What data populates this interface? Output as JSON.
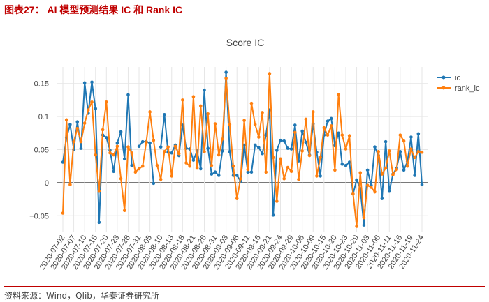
{
  "header": {
    "title": "图表27：  AI 模型预测结果 IC 和 Rank IC"
  },
  "footer": {
    "source": "资料来源：Wind，Qlib，华泰证券研究所"
  },
  "colors": {
    "ic": "#1f77b4",
    "rank_ic": "#ff7f0e",
    "grid": "#e6e6e6",
    "zero": "#666666"
  },
  "chart_data": {
    "type": "line",
    "title": "Score IC",
    "xlabel": "",
    "ylabel": "",
    "ylim": [
      -0.075,
      0.175
    ],
    "yticks": [
      -0.05,
      0,
      0.05,
      0.1,
      0.15
    ],
    "ytick_labels": [
      "−0.05",
      "0",
      "0.05",
      "0.1",
      "0.15"
    ],
    "legend_position": "top-right",
    "x_tick_labels": [
      "2020-07-02",
      "2020-07-07",
      "2020-07-10",
      "2020-07-15",
      "2020-07-20",
      "2020-07-23",
      "2020-07-28",
      "2020-07-31",
      "2020-08-05",
      "2020-08-10",
      "2020-08-13",
      "2020-08-18",
      "2020-08-21",
      "2020-08-26",
      "2020-08-31",
      "2020-09-03",
      "2020-09-08",
      "2020-09-11",
      "2020-09-16",
      "2020-09-21",
      "2020-09-24",
      "2020-09-29",
      "2020-10-06",
      "2020-10-09",
      "2020-10-15",
      "2020-10-20",
      "2020-10-23",
      "2020-10-29",
      "2020-11-03",
      "2020-11-06",
      "2020-11-11",
      "2020-11-16",
      "2020-11-19",
      "2020-11-24"
    ],
    "series": [
      {
        "name": "ic",
        "values": [
          0.031,
          0.068,
          0.088,
          0.05,
          0.092,
          0.052,
          0.151,
          0.105,
          0.152,
          0.112,
          -0.06,
          0.072,
          0.068,
          0.049,
          0.017,
          0.06,
          0.077,
          0.036,
          0.133,
          0.026,
          null,
          0.055,
          0.062,
          0.062,
          0.06,
          -0.001,
          null,
          0.054,
          0.103,
          0.046,
          0.045,
          0.057,
          0.041,
          0.087,
          0.052,
          0.051,
          0.034,
          0.048,
          0.021,
          0.14,
          0.052,
          0.013,
          0.016,
          0.011,
          0.048,
          0.167,
          0.047,
          0.011,
          0.011,
          0.002,
          0.057,
          0.016,
          0.016,
          0.057,
          0.053,
          0.044,
          0.072,
          0.11,
          -0.049,
          0.049,
          0.064,
          0.063,
          0.052,
          0.051,
          0.087,
          0.033,
          0.078,
          0.061,
          0.042,
          0.089,
          0.046,
          0.01,
          0.072,
          0.093,
          0.097,
          0.056,
          0.075,
          0.028,
          0.026,
          0.031,
          -0.017,
          0.004,
          -0.009,
          -0.064,
          0.019,
          -0.004,
          0.054,
          0.041,
          -0.024,
          0.062,
          -0.013,
          0.013,
          0.022,
          0.047,
          0.019,
          0.032,
          0.069,
          0.011,
          0.074,
          -0.003
        ]
      },
      {
        "name": "rank_ic",
        "values": [
          -0.046,
          0.095,
          -0.003,
          0.062,
          0.082,
          0.062,
          0.09,
          0.11,
          0.122,
          0.042,
          -0.013,
          0.08,
          0.122,
          0.045,
          0.042,
          0.055,
          0.006,
          -0.042,
          0.054,
          0.045,
          0.016,
          0.021,
          0.025,
          0.061,
          0.107,
          0.064,
          0.026,
          0.005,
          0.047,
          0.054,
          0.01,
          0.055,
          0.044,
          0.125,
          0.03,
          0.025,
          0.13,
          0.022,
          0.116,
          0.047,
          0.104,
          0.026,
          0.089,
          0.042,
          0.066,
          0.158,
          0.088,
          0.025,
          -0.024,
          0.006,
          0.094,
          0.02,
          0.12,
          0.088,
          0.069,
          0.106,
          0.016,
          0.165,
          0.038,
          -0.028,
          0.036,
          0.006,
          0.023,
          0.017,
          0.076,
          0.005,
          0.048,
          0.096,
          0.041,
          0.107,
          0.01,
          0.038,
          0.083,
          0.072,
          0.086,
          0.019,
          0.133,
          0.072,
          0.051,
          0.071,
          -0.017,
          -0.066,
          0.015,
          -0.053,
          -0.004,
          -0.007,
          -0.014,
          0.047,
          0.013,
          0.022,
          0.048,
          0.012,
          0.02,
          0.072,
          0.063,
          0.025,
          0.051,
          0.038,
          0.047,
          0.046
        ]
      }
    ]
  }
}
